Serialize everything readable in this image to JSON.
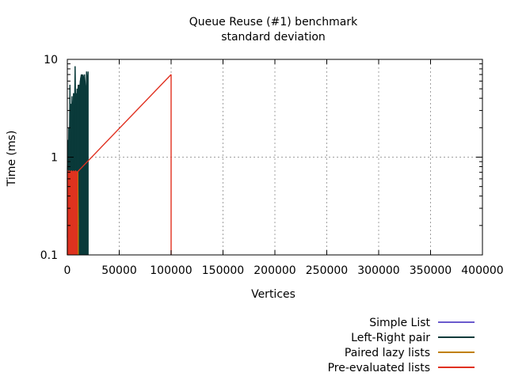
{
  "chart_data": {
    "type": "line",
    "title": "Queue Reuse (#1) benchmark",
    "subtitle": "standard deviation",
    "xlabel": "Vertices",
    "ylabel": "Time (ms)",
    "xlim": [
      0,
      400000
    ],
    "ylim": [
      0.1,
      10
    ],
    "y_scale": "log",
    "grid": true,
    "legend_position": "bottom-right",
    "x_ticks": [
      0,
      50000,
      100000,
      150000,
      200000,
      250000,
      300000,
      350000,
      400000
    ],
    "x_tick_labels": [
      "0",
      "50000",
      "100000",
      "150000",
      "200000",
      "250000",
      "300000",
      "350000",
      "400000"
    ],
    "y_ticks": [
      0.1,
      1,
      10
    ],
    "y_tick_labels": [
      "0.1",
      "1",
      "10"
    ],
    "series": [
      {
        "name": "Simple List",
        "color": "#6a5acd",
        "fill": false,
        "x": [
          100,
          300,
          600,
          900
        ],
        "y": [
          0.15,
          0.4,
          0.7,
          0.5
        ]
      },
      {
        "name": "Left-Right pair",
        "color": "#0a3a3a",
        "fill": true,
        "x": [
          100,
          500,
          1000,
          1500,
          2000,
          2500,
          3000,
          3500,
          4000,
          4500,
          5000,
          5500,
          6000,
          6500,
          7000,
          7500,
          8000,
          8500,
          9000,
          9500,
          10000,
          10500,
          11000,
          11500,
          12000,
          12500,
          13000,
          13500,
          14000,
          14500,
          15000,
          15500,
          16000,
          16500,
          17000,
          17500,
          18000,
          18500,
          19000,
          19500,
          20000
        ],
        "y": [
          0.75,
          1.5,
          0.8,
          2.0,
          1.2,
          5.5,
          1.3,
          3.5,
          1.8,
          4.2,
          2.5,
          3.0,
          4.5,
          2.8,
          3.8,
          8.5,
          3.5,
          4.5,
          3.8,
          5.0,
          4.5,
          5.5,
          5.0,
          5.5,
          5.2,
          6.0,
          6.5,
          7.0,
          6.0,
          7.0,
          6.5,
          5.5,
          6.8,
          7.0,
          6.0,
          5.0,
          1.4,
          7.5,
          3.0,
          6.5,
          7.5
        ]
      },
      {
        "name": "Paired lazy lists",
        "color": "#c08000",
        "fill": true,
        "x": [
          100,
          500,
          1000,
          2000,
          3000,
          4000,
          5000,
          6000,
          7000,
          8000,
          9000,
          9500,
          10000,
          10500
        ],
        "y": [
          0.6,
          0.7,
          0.7,
          0.6,
          0.7,
          0.72,
          0.7,
          0.65,
          0.7,
          0.72,
          0.7,
          0.5,
          0.72,
          0.2
        ]
      },
      {
        "name": "Pre-evaluated lists",
        "color": "#e03020",
        "fill": true,
        "x": [
          100,
          500,
          1000,
          2000,
          3000,
          4000,
          5000,
          6000,
          7000,
          8000,
          9000,
          9500,
          100000
        ],
        "y": [
          0.7,
          0.72,
          0.7,
          0.72,
          0.7,
          0.72,
          0.7,
          0.72,
          0.7,
          0.72,
          0.7,
          0.7,
          7.0
        ]
      }
    ]
  }
}
